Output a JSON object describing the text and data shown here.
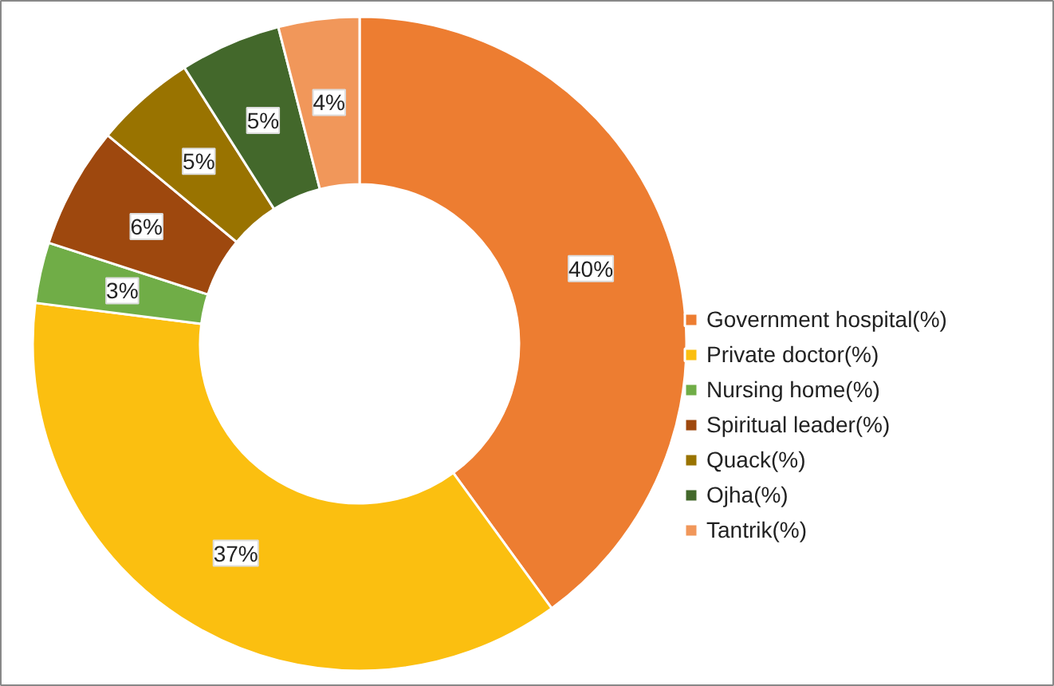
{
  "chart_data": {
    "type": "donut",
    "categories": [
      "Government hospital(%)",
      "Private doctor(%)",
      "Nursing home(%)",
      "Spiritual leader(%)",
      "Quack(%)",
      "Ojha(%)",
      "Tantrik(%)"
    ],
    "values": [
      40,
      37,
      3,
      6,
      5,
      5,
      4
    ],
    "colors": [
      "#ed7d31",
      "#fbbf10",
      "#70ad47",
      "#9e480e",
      "#997300",
      "#43682b",
      "#f1975a"
    ],
    "value_labels": [
      "40%",
      "37%",
      "3%",
      "6%",
      "5%",
      "5%",
      "4%"
    ],
    "legend": "right"
  }
}
